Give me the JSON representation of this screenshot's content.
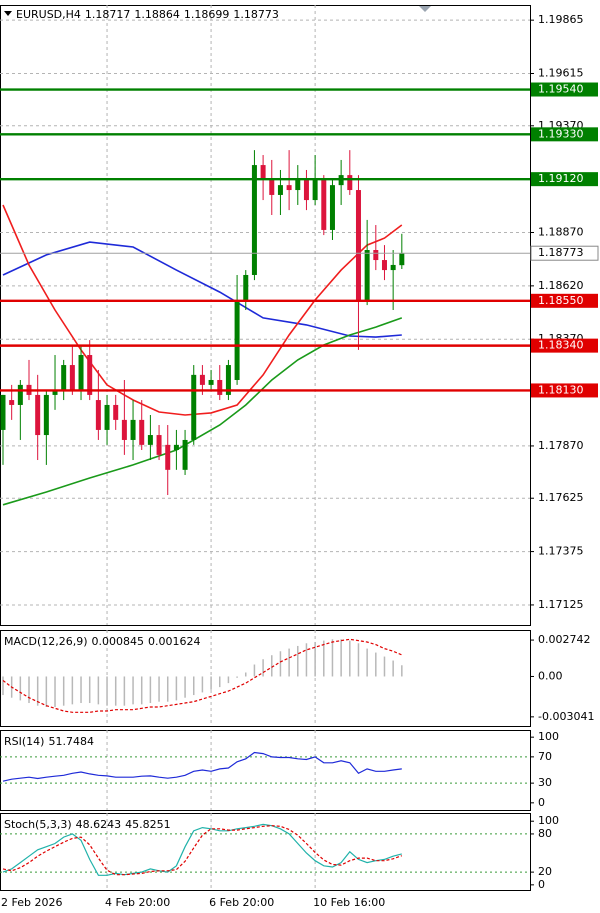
{
  "chart_data": [
    {
      "type": "candlestick",
      "title": "EURUSD,H4",
      "ohlc": [
        1.18717,
        1.18864,
        1.18699,
        1.18773
      ],
      "categories": [
        "2 Feb 2026",
        null,
        null,
        null,
        null,
        null,
        null,
        null,
        null,
        null,
        null,
        null,
        "4 Feb 20:00",
        null,
        null,
        null,
        null,
        null,
        null,
        null,
        null,
        null,
        null,
        null,
        "6 Feb 20:00",
        null,
        null,
        null,
        null,
        null,
        null,
        null,
        null,
        null,
        null,
        null,
        "10 Feb 16:00",
        null,
        null,
        null,
        null,
        null,
        null,
        null,
        null,
        null,
        null
      ],
      "open": [
        1.17945,
        1.18085,
        1.18062,
        1.18156,
        1.18109,
        1.17921,
        1.18109,
        1.18132,
        1.18249,
        1.18132,
        1.18296,
        1.18085,
        1.17945,
        1.18062,
        1.17992,
        1.17898,
        1.17992,
        1.17875,
        1.17921,
        1.17875,
        1.17851,
        1.17758,
        1.17898,
        1.18203,
        1.18156,
        1.18179,
        1.18109,
        1.18179,
        1.18554,
        1.18671,
        1.19186,
        1.19116,
        1.19046,
        1.19092,
        1.19069,
        1.19116,
        1.19022,
        1.19116,
        1.18882,
        1.19092,
        1.19139,
        1.19069,
        1.18554,
        1.18788,
        1.18741,
        1.18694,
        1.18717
      ],
      "high": [
        1.18109,
        1.18156,
        1.18179,
        1.18273,
        1.18203,
        1.18132,
        1.18296,
        1.18273,
        1.18343,
        1.18343,
        1.18366,
        1.18226,
        1.18109,
        1.18109,
        1.18179,
        1.18085,
        1.18085,
        1.18015,
        1.17968,
        1.17968,
        1.17945,
        1.17945,
        1.18249,
        1.18249,
        1.18226,
        1.18249,
        1.18273,
        1.18671,
        1.18694,
        1.19256,
        1.19233,
        1.1921,
        1.19163,
        1.19256,
        1.19186,
        1.19163,
        1.19233,
        1.19139,
        1.19116,
        1.1921,
        1.19256,
        1.19139,
        1.18929,
        1.18905,
        1.18811,
        1.18788,
        1.18864
      ],
      "low": [
        1.17781,
        1.17992,
        1.17898,
        1.18085,
        1.17804,
        1.17781,
        1.18039,
        1.18085,
        1.18109,
        1.18085,
        1.18085,
        1.17898,
        1.17875,
        1.17945,
        1.17828,
        1.17804,
        1.17851,
        1.17804,
        1.17804,
        1.1764,
        1.17758,
        1.17734,
        1.17875,
        1.18109,
        1.18132,
        1.18085,
        1.18085,
        1.18156,
        1.18507,
        1.18647,
        1.19022,
        1.18952,
        1.18952,
        1.18975,
        1.18999,
        1.18975,
        1.18999,
        1.18858,
        1.18835,
        1.18999,
        1.19046,
        1.1832,
        1.1853,
        1.18694,
        1.18647,
        1.18507,
        1.18699
      ],
      "close": [
        1.18109,
        1.18062,
        1.18156,
        1.18109,
        1.17921,
        1.18109,
        1.18132,
        1.18249,
        1.18132,
        1.18296,
        1.18109,
        1.17945,
        1.18062,
        1.17992,
        1.17898,
        1.17992,
        1.17875,
        1.17921,
        1.17828,
        1.17758,
        1.17875,
        1.17898,
        1.18203,
        1.18156,
        1.18179,
        1.18109,
        1.18249,
        1.18554,
        1.18671,
        1.19186,
        1.19116,
        1.19046,
        1.19092,
        1.19069,
        1.19116,
        1.19022,
        1.19116,
        1.18882,
        1.19092,
        1.19139,
        1.19069,
        1.18554,
        1.18788,
        1.18741,
        1.18694,
        1.18718,
        1.18773
      ],
      "up_color": "#008000",
      "down_color": "#dc143c",
      "lines": [
        {
          "color": "#1e2ad8",
          "x": [
            0,
            5,
            10,
            15,
            20,
            25,
            30,
            35,
            40,
            43,
            46
          ],
          "values": [
            1.18671,
            1.18765,
            1.18825,
            1.18802,
            1.18694,
            1.18591,
            1.1847,
            1.18437,
            1.18385,
            1.1838,
            1.1839
          ]
        },
        {
          "color": "#f01e1e",
          "x": [
            0,
            3,
            6,
            9,
            12,
            15,
            18,
            21,
            24,
            27,
            30,
            33,
            36,
            39,
            42,
            44,
            46
          ],
          "values": [
            1.18999,
            1.18718,
            1.18507,
            1.1832,
            1.18156,
            1.18085,
            1.18029,
            1.18015,
            1.18025,
            1.18062,
            1.18203,
            1.1839,
            1.18554,
            1.18694,
            1.18811,
            1.18844,
            1.18905
          ]
        },
        {
          "color": "#1a9a1a",
          "x": [
            0,
            5,
            10,
            15,
            20,
            25,
            28,
            31,
            34,
            37,
            40,
            43,
            46
          ],
          "values": [
            1.17594,
            1.17654,
            1.1772,
            1.17781,
            1.17851,
            1.17968,
            1.18062,
            1.18179,
            1.18273,
            1.18343,
            1.1839,
            1.18427,
            1.1847
          ]
        }
      ],
      "levels": [
        {
          "value": 1.1954,
          "label": "1.19540",
          "color": "#008000"
        },
        {
          "value": 1.1933,
          "label": "1.19330",
          "color": "#008000"
        },
        {
          "value": 1.1912,
          "label": "1.19120",
          "color": "#008000"
        },
        {
          "value": 1.1855,
          "label": "1.18550",
          "color": "#e00000"
        },
        {
          "value": 1.1834,
          "label": "1.18340",
          "color": "#e00000"
        },
        {
          "value": 1.1813,
          "label": "1.18130",
          "color": "#e00000"
        }
      ],
      "current_price": 1.18773,
      "ylim": [
        1.17031,
        1.19936
      ],
      "yticks": [
        1.19865,
        1.19615,
        {
          "value": 1.1937,
          "label": "1.19370"
        },
        {
          "value": 1.1887,
          "label": "1.18870"
        },
        {
          "value": 1.1862,
          "label": "1.18620"
        },
        {
          "value": 1.1837,
          "label": "1.18370"
        },
        {
          "value": 1.1787,
          "label": "1.17870"
        },
        1.17625,
        1.17375,
        1.17125
      ],
      "grid": true
    },
    {
      "type": "indicator",
      "title": "MACD(12,26,9)",
      "title_values": [
        0.000845,
        0.001624
      ],
      "series": [
        {
          "style": "histogram",
          "color": "#b8b8b8",
          "values": [
            -0.0014,
            -0.0016,
            -0.0018,
            -0.002,
            -0.0022,
            -0.0023,
            -0.0023,
            -0.0022,
            -0.0021,
            -0.002,
            -0.002,
            -0.0021,
            -0.0022,
            -0.0022,
            -0.0022,
            -0.0021,
            -0.0021,
            -0.002,
            -0.0019,
            -0.0019,
            -0.0018,
            -0.0016,
            -0.0014,
            -0.0012,
            -0.001,
            -0.0008,
            -0.0005,
            -0.0001,
            0.0003,
            0.0009,
            0.0013,
            0.0016,
            0.0019,
            0.0021,
            0.0023,
            0.0025,
            0.0026,
            0.0027,
            0.0028,
            0.0028,
            0.0027,
            0.0025,
            0.0021,
            0.0018,
            0.0015,
            0.0012,
            0.000845
          ]
        },
        {
          "style": "dashed",
          "color": "#e00000",
          "values": [
            -0.0003,
            -0.0008,
            -0.0012,
            -0.0016,
            -0.0019,
            -0.0022,
            -0.0024,
            -0.0026,
            -0.0027,
            -0.0027,
            -0.0027,
            -0.0026,
            -0.0026,
            -0.0025,
            -0.0025,
            -0.0025,
            -0.0024,
            -0.0023,
            -0.0023,
            -0.0022,
            -0.0021,
            -0.002,
            -0.0019,
            -0.0017,
            -0.0015,
            -0.0013,
            -0.0011,
            -0.0008,
            -0.0005,
            -0.0001,
            0.0003,
            0.0007,
            0.0011,
            0.0014,
            0.0017,
            0.002,
            0.0022,
            0.0024,
            0.0026,
            0.0027,
            0.0028,
            0.0027,
            0.0026,
            0.0024,
            0.0021,
            0.0019,
            0.001624
          ]
        }
      ],
      "ylim": [
        -0.00373,
        0.0035
      ],
      "yticks": [
        0.002742,
        {
          "value": 0,
          "label": "0.00"
        },
        -0.003041
      ]
    },
    {
      "type": "indicator",
      "title": "RSI(14)",
      "title_values": [
        51.7484
      ],
      "series": [
        {
          "style": "line",
          "color": "#1e2ad8",
          "values": [
            33,
            36,
            37.5,
            39,
            37,
            39,
            40.6,
            42,
            45,
            47,
            44,
            42,
            41,
            39,
            39,
            39,
            40.6,
            41,
            39,
            37.5,
            39,
            42,
            48,
            50,
            48,
            51.6,
            53,
            62.5,
            67,
            76.6,
            75,
            70,
            69,
            69,
            67,
            66,
            70,
            61,
            61,
            64,
            61,
            45,
            51.6,
            48,
            48,
            50,
            51.7484
          ]
        }
      ],
      "levels": [
        70,
        30
      ],
      "ylim": [
        -10.9,
        110.9
      ],
      "yticks": [
        100,
        70,
        30,
        0
      ]
    },
    {
      "type": "indicator",
      "title": "Stoch(5,3,3)",
      "title_values": [
        48.6243,
        45.8251
      ],
      "series": [
        {
          "style": "line",
          "color": "#20b2aa",
          "values": [
            20,
            25,
            35,
            45,
            55,
            60,
            65,
            75,
            80,
            70,
            40,
            15,
            15,
            18,
            16,
            18,
            20,
            25,
            22,
            20,
            30,
            60,
            85,
            90,
            88,
            85,
            85,
            88,
            90,
            92,
            95,
            93,
            88,
            80,
            65,
            50,
            38,
            30,
            28,
            35,
            52,
            40,
            35,
            38,
            40,
            45,
            48.6243
          ]
        },
        {
          "style": "dashed",
          "color": "#e00000",
          "values": [
            25,
            22,
            27,
            35,
            45,
            53,
            60,
            67,
            73,
            75,
            63,
            42,
            23,
            16,
            16,
            17,
            18,
            21,
            22,
            22,
            24,
            37,
            58,
            78,
            88,
            88,
            86,
            86,
            88,
            90,
            92,
            93,
            92,
            87,
            78,
            65,
            51,
            39,
            32,
            31,
            38,
            42,
            42,
            38,
            38,
            41,
            45.8251
          ]
        }
      ],
      "levels": [
        80,
        20
      ],
      "ylim": [
        -8.1,
        112.9
      ],
      "yticks": [
        100,
        80,
        20,
        0
      ]
    }
  ]
}
